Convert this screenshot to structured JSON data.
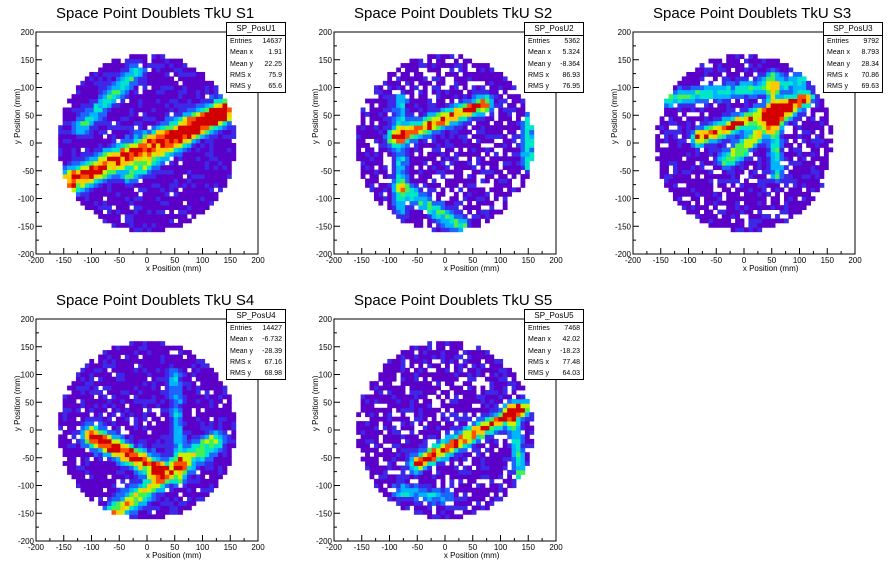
{
  "colors": {
    "frame": "#000000",
    "background": "#ffffff",
    "palette": [
      "#5b00c8",
      "#3c28e6",
      "#1e64ff",
      "#00b4ff",
      "#00e6c8",
      "#46f050",
      "#c8f000",
      "#ffc800",
      "#ff5000",
      "#d20000"
    ]
  },
  "stat_labels": {
    "entries": "Entries",
    "mean_x": "Mean x",
    "mean_y": "Mean y",
    "rms_x": "RMS x",
    "rms_y": "RMS y"
  },
  "chart_data": [
    {
      "type": "heatmap",
      "title": "Space Point Doublets TkU S1",
      "xlabel": "x Position (mm)",
      "ylabel": "y Position (mm)",
      "xlim": [
        -200,
        200
      ],
      "ylim": [
        -200,
        200
      ],
      "xticks": [
        -200,
        -150,
        -100,
        -50,
        0,
        50,
        100,
        150,
        200
      ],
      "yticks": [
        -200,
        -150,
        -100,
        -50,
        0,
        50,
        100,
        150,
        200
      ],
      "bin_size_mm": 8,
      "region_radius_mm": 160,
      "stats": {
        "name": "SP_PosU1",
        "entries": "14637",
        "mean_x": "1.91",
        "mean_y": "22.25",
        "rms_x": "75.9",
        "rms_y": "65.6"
      },
      "tracks": [
        {
          "x1": -140,
          "y1": -70,
          "x2": 140,
          "y2": 60,
          "peak": 9,
          "width": 14
        },
        {
          "x1": -120,
          "y1": 30,
          "x2": -20,
          "y2": 130,
          "peak": 4,
          "width": 10
        },
        {
          "x1": -30,
          "y1": -60,
          "x2": 130,
          "y2": 50,
          "peak": 4,
          "width": 10
        }
      ],
      "empty_fraction": 0.05,
      "seed": 11
    },
    {
      "type": "heatmap",
      "title": "Space Point Doublets TkU S2",
      "xlabel": "x Position (mm)",
      "ylabel": "y Position (mm)",
      "xlim": [
        -200,
        200
      ],
      "ylim": [
        -200,
        200
      ],
      "xticks": [
        -200,
        -150,
        -100,
        -50,
        0,
        50,
        100,
        150,
        200
      ],
      "yticks": [
        -200,
        -150,
        -100,
        -50,
        0,
        50,
        100,
        150,
        200
      ],
      "bin_size_mm": 8,
      "region_radius_mm": 160,
      "stats": {
        "name": "SP_PosU2",
        "entries": "5362",
        "mean_x": "5.324",
        "mean_y": "-8.364",
        "rms_x": "86.93",
        "rms_y": "76.95"
      },
      "tracks": [
        {
          "x1": -90,
          "y1": 10,
          "x2": 70,
          "y2": 70,
          "peak": 8,
          "width": 10
        },
        {
          "x1": -80,
          "y1": -80,
          "x2": 30,
          "y2": -150,
          "peak": 4,
          "width": 10
        },
        {
          "x1": -80,
          "y1": 80,
          "x2": -80,
          "y2": -120,
          "peak": 3,
          "width": 8
        },
        {
          "x1": 150,
          "y1": 40,
          "x2": 150,
          "y2": -40,
          "peak": 4,
          "width": 8
        }
      ],
      "empty_fraction": 0.22,
      "seed": 23
    },
    {
      "type": "heatmap",
      "title": "Space Point Doublets TkU S3",
      "xlabel": "x Position (mm)",
      "ylabel": "y Position (mm)",
      "xlim": [
        -200,
        200
      ],
      "ylim": [
        -200,
        200
      ],
      "xticks": [
        -200,
        -150,
        -100,
        -50,
        0,
        50,
        100,
        150,
        200
      ],
      "yticks": [
        -200,
        -150,
        -100,
        -50,
        0,
        50,
        100,
        150,
        200
      ],
      "bin_size_mm": 8,
      "region_radius_mm": 160,
      "stats": {
        "name": "SP_PosU3",
        "entries": "9792",
        "mean_x": "8.793",
        "mean_y": "28.34",
        "rms_x": "70.86",
        "rms_y": "69.63"
      },
      "tracks": [
        {
          "x1": -80,
          "y1": 10,
          "x2": 110,
          "y2": 80,
          "peak": 8,
          "width": 10
        },
        {
          "x1": -30,
          "y1": -30,
          "x2": 80,
          "y2": 60,
          "peak": 6,
          "width": 10
        },
        {
          "x1": -140,
          "y1": 80,
          "x2": 100,
          "y2": 110,
          "peak": 4,
          "width": 10
        },
        {
          "x1": 50,
          "y1": 120,
          "x2": 60,
          "y2": -60,
          "peak": 4,
          "width": 8
        }
      ],
      "empty_fraction": 0.16,
      "seed": 37
    },
    {
      "type": "heatmap",
      "title": "Space Point Doublets TkU S4",
      "xlabel": "x Position (mm)",
      "ylabel": "y Position (mm)",
      "xlim": [
        -200,
        200
      ],
      "ylim": [
        -200,
        200
      ],
      "xticks": [
        -200,
        -150,
        -100,
        -50,
        0,
        50,
        100,
        150,
        200
      ],
      "yticks": [
        -200,
        -150,
        -100,
        -50,
        0,
        50,
        100,
        150,
        200
      ],
      "bin_size_mm": 8,
      "region_radius_mm": 160,
      "stats": {
        "name": "SP_PosU4",
        "entries": "14427",
        "mean_x": "-6.732",
        "mean_y": "-28.39",
        "rms_x": "67.16",
        "rms_y": "68.98"
      },
      "tracks": [
        {
          "x1": -100,
          "y1": -10,
          "x2": 20,
          "y2": -70,
          "peak": 9,
          "width": 12
        },
        {
          "x1": -60,
          "y1": -150,
          "x2": 120,
          "y2": -20,
          "peak": 6,
          "width": 12
        },
        {
          "x1": 50,
          "y1": 100,
          "x2": 60,
          "y2": -90,
          "peak": 3,
          "width": 8
        }
      ],
      "empty_fraction": 0.08,
      "seed": 41
    },
    {
      "type": "heatmap",
      "title": "Space Point Doublets TkU S5",
      "xlabel": "x Position (mm)",
      "ylabel": "y Position (mm)",
      "xlim": [
        -200,
        200
      ],
      "ylim": [
        -200,
        200
      ],
      "xticks": [
        -200,
        -150,
        -100,
        -50,
        0,
        50,
        100,
        150,
        200
      ],
      "yticks": [
        -200,
        -150,
        -100,
        -50,
        0,
        50,
        100,
        150,
        200
      ],
      "bin_size_mm": 8,
      "region_radius_mm": 160,
      "stats": {
        "name": "SP_PosU5",
        "entries": "7468",
        "mean_x": "42.02",
        "mean_y": "-18.23",
        "rms_x": "77.48",
        "rms_y": "64.03"
      },
      "tracks": [
        {
          "x1": -50,
          "y1": -60,
          "x2": 140,
          "y2": 40,
          "peak": 8,
          "width": 10
        },
        {
          "x1": 120,
          "y1": 40,
          "x2": 140,
          "y2": -100,
          "peak": 4,
          "width": 8
        },
        {
          "x1": -80,
          "y1": -110,
          "x2": 0,
          "y2": -120,
          "peak": 3,
          "width": 10
        }
      ],
      "empty_fraction": 0.22,
      "seed": 53
    }
  ]
}
